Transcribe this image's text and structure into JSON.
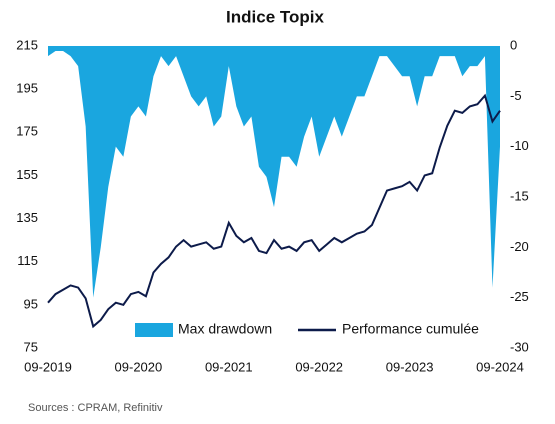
{
  "chart_data": {
    "type": "line",
    "title": "Indice Topix",
    "source": "Sources : CPRAM, Refinitiv",
    "x": [
      "09-2019",
      "10-2019",
      "11-2019",
      "12-2019",
      "01-2020",
      "02-2020",
      "03-2020",
      "04-2020",
      "05-2020",
      "06-2020",
      "07-2020",
      "08-2020",
      "09-2020",
      "10-2020",
      "11-2020",
      "12-2020",
      "01-2021",
      "02-2021",
      "03-2021",
      "04-2021",
      "05-2021",
      "06-2021",
      "07-2021",
      "08-2021",
      "09-2021",
      "10-2021",
      "11-2021",
      "12-2021",
      "01-2022",
      "02-2022",
      "03-2022",
      "04-2022",
      "05-2022",
      "06-2022",
      "07-2022",
      "08-2022",
      "09-2022",
      "10-2022",
      "11-2022",
      "12-2022",
      "01-2023",
      "02-2023",
      "03-2023",
      "04-2023",
      "05-2023",
      "06-2023",
      "07-2023",
      "08-2023",
      "09-2023",
      "10-2023",
      "11-2023",
      "12-2023",
      "01-2024",
      "02-2024",
      "03-2024",
      "04-2024",
      "05-2024",
      "06-2024",
      "07-2024",
      "08-2024",
      "09-2024"
    ],
    "xticks": [
      "09-2019",
      "09-2020",
      "09-2021",
      "09-2022",
      "09-2023",
      "09-2024"
    ],
    "series": [
      {
        "name": "Max drawdown",
        "color": "#1aa6df",
        "axis": "y2",
        "kind": "area",
        "values": [
          -1,
          -0.5,
          -0.5,
          -1,
          -2,
          -8,
          -25,
          -20,
          -14,
          -10,
          -11,
          -7,
          -6,
          -7,
          -3,
          -1,
          -2,
          -1,
          -3,
          -5,
          -6,
          -5,
          -8,
          -7,
          -2,
          -6,
          -8,
          -7,
          -12,
          -13,
          -16,
          -11,
          -11,
          -12,
          -9,
          -7,
          -11,
          -9,
          -7,
          -9,
          -7,
          -5,
          -5,
          -3,
          -1,
          -1,
          -2,
          -3,
          -3,
          -6,
          -3,
          -3,
          -1,
          -1,
          -1,
          -3,
          -2,
          -2,
          -1,
          -24,
          -10
        ]
      },
      {
        "name": "Performance cumulée",
        "color": "#0d1b4a",
        "kind": "line",
        "values": [
          96,
          100,
          102,
          104,
          103,
          98,
          85,
          88,
          93,
          96,
          95,
          100,
          101,
          99,
          110,
          114,
          117,
          122,
          125,
          122,
          123,
          124,
          121,
          122,
          133,
          127,
          124,
          126,
          120,
          119,
          125,
          121,
          122,
          120,
          124,
          125,
          120,
          123,
          126,
          124,
          126,
          128,
          129,
          132,
          140,
          148,
          149,
          150,
          152,
          148,
          155,
          156,
          168,
          178,
          185,
          184,
          187,
          188,
          192,
          180,
          185
        ]
      }
    ],
    "ylim": [
      75,
      215
    ],
    "yticks": [
      75,
      95,
      115,
      135,
      155,
      175,
      195,
      215
    ],
    "y2lim": [
      -30,
      0
    ],
    "y2ticks": [
      0,
      -5,
      -10,
      -15,
      -20,
      -25,
      -30
    ]
  }
}
